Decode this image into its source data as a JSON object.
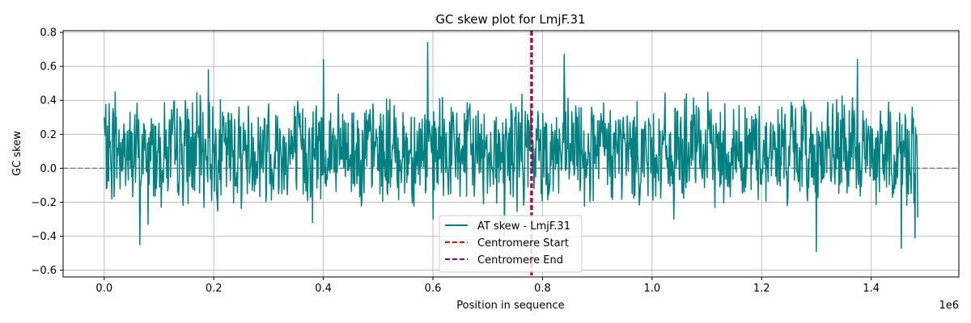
{
  "chart_data": {
    "type": "line",
    "title": "GC skew plot for LmjF.31",
    "xlabel": "Position in sequence",
    "ylabel": "GC skew",
    "x_offset_label": "1e6",
    "xlim": [
      -0.075,
      1.56
    ],
    "ylim": [
      -0.64,
      0.81
    ],
    "x_ticks": [
      0.0,
      0.2,
      0.4,
      0.6,
      0.8,
      1.0,
      1.2,
      1.4
    ],
    "x_tick_labels": [
      "0.0",
      "0.2",
      "0.4",
      "0.6",
      "0.8",
      "1.0",
      "1.2",
      "1.4"
    ],
    "y_ticks": [
      -0.6,
      -0.4,
      -0.2,
      0.0,
      0.2,
      0.4,
      0.6,
      0.8
    ],
    "y_tick_labels": [
      "−0.6",
      "−0.4",
      "−0.2",
      "0.0",
      "0.2",
      "0.4",
      "0.6",
      "0.8"
    ],
    "grid": true,
    "legend_placement": "lower-center",
    "zero_line": {
      "y": 0.0,
      "color": "#808080",
      "style": "dashed"
    },
    "series": [
      {
        "name": "AT skew - LmjF.31",
        "color": "#008080",
        "x_start": 0.0,
        "x_end": 1.485,
        "points": 1485,
        "summary": {
          "typical_range": [
            -0.25,
            0.45
          ],
          "max": 0.74,
          "max_at": 0.59,
          "min": -0.49,
          "min_at": 1.3
        },
        "key_points": [
          [
            0.0,
            0.3
          ],
          [
            0.004,
            -0.12
          ],
          [
            0.02,
            0.45
          ],
          [
            0.065,
            -0.45
          ],
          [
            0.08,
            -0.33
          ],
          [
            0.19,
            0.58
          ],
          [
            0.3,
            0.38
          ],
          [
            0.38,
            -0.32
          ],
          [
            0.4,
            0.64
          ],
          [
            0.59,
            0.74
          ],
          [
            0.6,
            -0.3
          ],
          [
            0.73,
            -0.4
          ],
          [
            0.84,
            0.67
          ],
          [
            1.04,
            -0.3
          ],
          [
            1.3,
            -0.49
          ],
          [
            1.375,
            0.64
          ],
          [
            1.455,
            -0.47
          ],
          [
            1.48,
            -0.41
          ],
          [
            1.485,
            -0.29
          ]
        ]
      }
    ],
    "vlines": [
      {
        "name": "Centromere Start",
        "x": 0.779,
        "color": "#ff0000",
        "style": "dashed"
      },
      {
        "name": "Centromere End",
        "x": 0.781,
        "color": "#800080",
        "style": "dashed"
      }
    ]
  }
}
